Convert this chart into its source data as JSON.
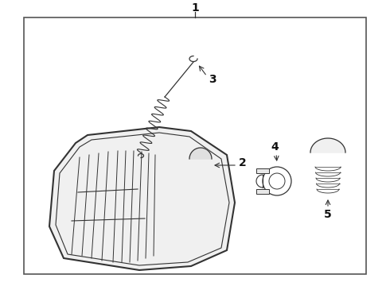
{
  "bg_color": "#ffffff",
  "border_color": "#555555",
  "line_color": "#333333",
  "label_color": "#111111",
  "fig_width": 4.9,
  "fig_height": 3.6,
  "dpi": 100
}
